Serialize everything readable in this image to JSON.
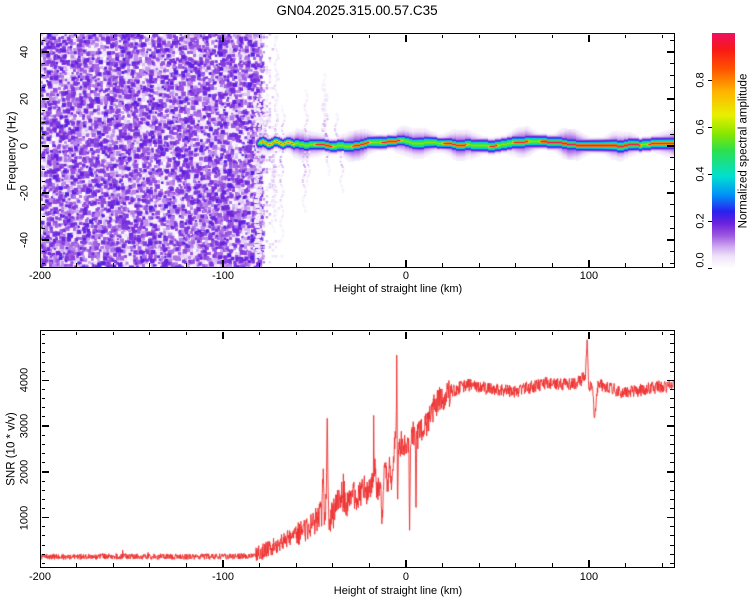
{
  "title": "GN04.2025.315.00.57.C35",
  "chart_data": [
    {
      "id": "spectrogram",
      "type": "heatmap",
      "xlabel": "Height of straight line (km)",
      "ylabel": "Frequency (Hz)",
      "xlim": [
        -200,
        147
      ],
      "ylim": [
        -52,
        48
      ],
      "x_major_ticks": [
        -200,
        -100,
        0,
        100
      ],
      "x_minor_step": 20,
      "y_major_ticks": [
        -40,
        -20,
        0,
        20,
        40
      ],
      "y_minor_step": 5,
      "colorbar": {
        "label": "Normalized spectral amplitude",
        "ticks": [
          0.0,
          0.2,
          0.4,
          0.6,
          0.8
        ],
        "range": [
          0,
          1
        ],
        "stops": [
          [
            0.0,
            "#ffffff"
          ],
          [
            0.05,
            "#efe2fa"
          ],
          [
            0.09,
            "#cfaaf0"
          ],
          [
            0.14,
            "#9b55e0"
          ],
          [
            0.19,
            "#6a22dd"
          ],
          [
            0.24,
            "#2a20f0"
          ],
          [
            0.31,
            "#0090f8"
          ],
          [
            0.39,
            "#00e0d0"
          ],
          [
            0.5,
            "#2ce04c"
          ],
          [
            0.57,
            "#86e600"
          ],
          [
            0.65,
            "#e8f000"
          ],
          [
            0.75,
            "#ffb400"
          ],
          [
            0.85,
            "#ff5000"
          ],
          [
            0.93,
            "#f81818"
          ],
          [
            1.0,
            "#ee1060"
          ]
        ]
      },
      "noise_field": {
        "x_range_km": [
          -200,
          -80
        ],
        "frequency_coverage_hz": [
          -52,
          48
        ],
        "value_range": [
          0.0,
          0.22
        ],
        "appearance": "dense purple speckle over white, fading out just past -80 km"
      },
      "echo_band": {
        "x_range_km": [
          -83,
          147
        ],
        "center_hz": 1.0,
        "core_halfwidth_hz": 1.2,
        "green_halfwidth_hz": 2.5,
        "halo_halfwidth_hz": 8,
        "dotted_until_km": -61,
        "core_value": 0.96,
        "base_value": 0.58,
        "red_segments_km": [
          [
            -83,
            -61
          ],
          [
            -50,
            -40
          ],
          [
            -30,
            -20
          ],
          [
            -14,
            -3
          ],
          [
            20,
            33
          ],
          [
            45,
            50
          ],
          [
            58,
            67
          ],
          [
            73,
            128
          ],
          [
            132,
            147
          ]
        ]
      }
    },
    {
      "id": "snr",
      "type": "line",
      "xlabel": "Height of straight line (km)",
      "ylabel": "SNR (10 * v/v)",
      "xlim": [
        -200,
        147
      ],
      "ylim": [
        -100,
        5100
      ],
      "x_major_ticks": [
        -200,
        -100,
        0,
        100
      ],
      "x_minor_step": 20,
      "y_major_ticks": [
        1000,
        2000,
        3000,
        4000
      ],
      "y_minor_step": 200,
      "line_color": "#ee3030",
      "series": [
        {
          "name": "SNR",
          "anchors_km_value": [
            [
              -200,
              150
            ],
            [
              -180,
              140
            ],
            [
              -160,
              155
            ],
            [
              -140,
              145
            ],
            [
              -120,
              150
            ],
            [
              -100,
              150
            ],
            [
              -90,
              155
            ],
            [
              -85,
              170
            ],
            [
              -80,
              220
            ],
            [
              -76,
              300
            ],
            [
              -72,
              380
            ],
            [
              -68,
              470
            ],
            [
              -64,
              560
            ],
            [
              -60,
              640
            ],
            [
              -56,
              720
            ],
            [
              -52,
              850
            ],
            [
              -48,
              1000
            ],
            [
              -46,
              1100
            ],
            [
              -45.3,
              1900
            ],
            [
              -44.6,
              1000
            ],
            [
              -43.6,
              1300
            ],
            [
              -43,
              3120
            ],
            [
              -42.4,
              950
            ],
            [
              -41,
              1000
            ],
            [
              -39,
              1150
            ],
            [
              -37,
              1350
            ],
            [
              -35,
              1500
            ],
            [
              -33,
              1250
            ],
            [
              -31,
              1400
            ],
            [
              -29,
              1550
            ],
            [
              -27,
              1350
            ],
            [
              -25,
              1500
            ],
            [
              -23,
              1650
            ],
            [
              -21,
              1500
            ],
            [
              -19,
              1750
            ],
            [
              -17,
              2200
            ],
            [
              -16,
              1500
            ],
            [
              -14,
              1850
            ],
            [
              -13,
              950
            ],
            [
              -12,
              1900
            ],
            [
              -11,
              2050
            ],
            [
              -10,
              1600
            ],
            [
              -9,
              2150
            ],
            [
              -8,
              1700
            ],
            [
              -7,
              2350
            ],
            [
              -6,
              2600
            ],
            [
              -5.4,
              2800
            ],
            [
              -5,
              4800
            ],
            [
              -4.6,
              900
            ],
            [
              -4.2,
              2400
            ],
            [
              -3,
              2550
            ],
            [
              -2,
              2650
            ],
            [
              -1,
              2500
            ],
            [
              0,
              2550
            ],
            [
              1,
              2650
            ],
            [
              1.6,
              2500
            ],
            [
              2,
              700
            ],
            [
              2.6,
              2700
            ],
            [
              4,
              2850
            ],
            [
              5.2,
              2600
            ],
            [
              5.5,
              650
            ],
            [
              5.8,
              2700
            ],
            [
              7,
              2800
            ],
            [
              8,
              3000
            ],
            [
              10,
              2950
            ],
            [
              12,
              3150
            ],
            [
              14,
              3300
            ],
            [
              16,
              3450
            ],
            [
              18,
              3550
            ],
            [
              20,
              3600
            ],
            [
              23,
              3700
            ],
            [
              26,
              3780
            ],
            [
              30,
              3850
            ],
            [
              35,
              3900
            ],
            [
              40,
              3870
            ],
            [
              45,
              3820
            ],
            [
              50,
              3800
            ],
            [
              55,
              3780
            ],
            [
              60,
              3760
            ],
            [
              65,
              3820
            ],
            [
              70,
              3870
            ],
            [
              75,
              3920
            ],
            [
              80,
              3960
            ],
            [
              85,
              3920
            ],
            [
              90,
              3900
            ],
            [
              95,
              3980
            ],
            [
              98,
              4100
            ],
            [
              99,
              4900
            ],
            [
              100,
              3800
            ],
            [
              102,
              3900
            ],
            [
              103,
              3100
            ],
            [
              105,
              3900
            ],
            [
              110,
              3870
            ],
            [
              115,
              3780
            ],
            [
              120,
              3720
            ],
            [
              125,
              3760
            ],
            [
              130,
              3800
            ],
            [
              135,
              3840
            ],
            [
              140,
              3860
            ],
            [
              147,
              3900
            ]
          ],
          "noise_amplitude": {
            "quiet": 65,
            "rise": 180,
            "transition": 300,
            "plateau": 140
          },
          "region_bounds_km": {
            "quiet_until": -82,
            "rise_until": -60,
            "transition_until": 25
          }
        }
      ]
    }
  ]
}
